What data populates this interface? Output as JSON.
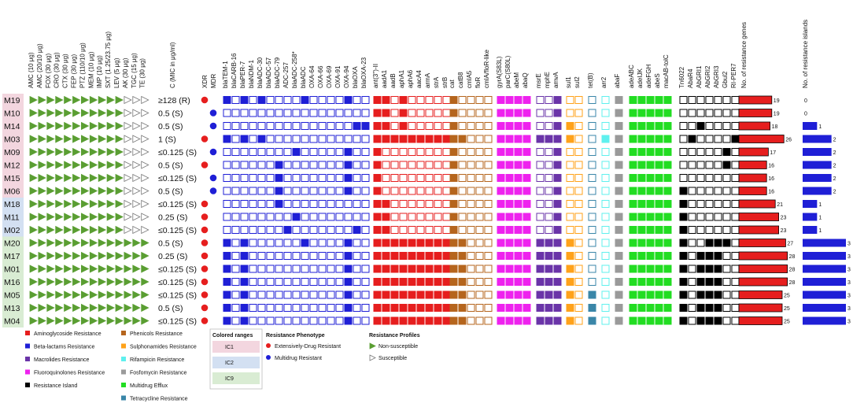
{
  "chart_data": {
    "type": "heatmap",
    "title": "",
    "isolates": [
      "M19",
      "M10",
      "M14",
      "M03",
      "M09",
      "M12",
      "M15",
      "M06",
      "M18",
      "M11",
      "M02",
      "M20",
      "M17",
      "M01",
      "M16",
      "M05",
      "M13",
      "M04"
    ],
    "mic_header": "C (MIC in μg/ml)",
    "mic_values": [
      "≥128 (R)",
      "0.5 (S)",
      "0.5 (S)",
      "1 (S)",
      "≤0.125 (S)",
      "0.5 (S)",
      "≤0.125 (S)",
      "0.5 (S)",
      "≤0.125 (S)",
      "0.25 (S)",
      "≤0.125 (S)",
      "0.5 (S)",
      "0.25 (S)",
      "≤0.125 (S)",
      "≤0.125 (S)",
      "≤0.125 (S)",
      "0.5 (S)",
      "≤0.125 (S)"
    ],
    "antibiotics": [
      "AMC (10 μg)",
      "AMC (20/10 μg)",
      "FOX (30 μg)",
      "CRO (30 μg)",
      "CTX (30 μg)",
      "FEP (30 μg)",
      "PTZ (110/10 μg)",
      "MEM (10 μg)",
      "IMP (10 μg)",
      "SXT (1.25/23.75 μg)",
      "LEV (5 μg)",
      "AK (30 μg)",
      "TGC (15 μg)",
      "TE (30 μg)"
    ],
    "susceptibility": [
      "RRRRRRRRRRRSSS",
      "RRRRRRRRRRRSSS",
      "RRRRRRRRRRRSSS",
      "RRRRRRRRRRRSSS",
      "RRRRRRRRRRRSSS",
      "RRRRRRRRRRRSSS",
      "RRRRRRRRRRRSSS",
      "RRRRRRRRRRRSSS",
      "RRRRRRRRRRRSSS",
      "RRRRRRRRRRRSSS",
      "RRRRRRRRRRRSSS",
      "RRRRRRRRRRRRRR",
      "RRRRRRRRRRRRRR",
      "RRRRRRRRRRRRRR",
      "RRRRRRRRRRRRRR",
      "RRRRRRRRRRRRRR",
      "RRRRRRRRRRRRRR",
      "RRRRRRRRRRRRRR"
    ],
    "ic_groups": [
      "IC1",
      "IC1",
      "IC1",
      "IC1",
      "IC1",
      "IC1",
      "IC1",
      "IC1",
      "IC2",
      "IC2",
      "IC2",
      "IC9",
      "IC9",
      "IC9",
      "IC9",
      "IC9",
      "IC9",
      "IC9"
    ],
    "phenotype_headers": [
      "XDR",
      "MDR"
    ],
    "phenotypes": [
      "XDR",
      "MDR",
      "MDR",
      "XDR",
      "MDR",
      "XDR",
      "MDR",
      "MDR",
      "XDR",
      "XDR",
      "XDR",
      "XDR",
      "XDR",
      "XDR",
      "XDR",
      "XDR",
      "XDR",
      "XDR"
    ],
    "gene_groups": [
      {
        "name": "Beta-lactams",
        "color": "#1f1fd6",
        "genes": [
          "blaTEM-1",
          "blaCARB-16",
          "blaPER-7",
          "blaNDM-1",
          "blaADC-30",
          "blaADC-57",
          "blaADC-79",
          "ADC-257",
          "blaADC-258*",
          "blaADC",
          "OXA-64",
          "OXA-66",
          "OXA-69",
          "OXA-91",
          "OXA-94",
          "blaOXA",
          "blaOXA-23"
        ],
        "rows": [
          "10101000010000100",
          "00000000000000000",
          "00000000000000011",
          "10101000000000000",
          "00000000100000100",
          "00000010000000100",
          "00000010000000100",
          "00000010000000100",
          "00000010000000000",
          "00000000100000000",
          "00000001000000010",
          "10100000010000100",
          "10100000000000100",
          "10100000000000100",
          "10100000000000100",
          "10100000000000100",
          "10100000000000100",
          "10100000000000100"
        ]
      },
      {
        "name": "Aminoglycosides",
        "color": "#e61e1e",
        "genes": [
          "ant(3'')-II",
          "aadA1",
          "aadB",
          "aphA1",
          "aphA6",
          "aacA4",
          "armA",
          "strA",
          "strB"
        ],
        "rows": [
          "110100000",
          "110100000",
          "110100000",
          "111111111",
          "100000000",
          "100000000",
          "100000000",
          "100000000",
          "110000000",
          "110000000",
          "110000000",
          "111111111",
          "111111111",
          "111111111",
          "111111111",
          "111111111",
          "111111111",
          "111111111"
        ]
      },
      {
        "name": "Phenicols",
        "color": "#b5651d",
        "genes": [
          "cat",
          "catB8",
          "cmlA5",
          "floR",
          "cmlA/floR-like"
        ],
        "rows": [
          "10000",
          "10000",
          "10000",
          "11000",
          "10000",
          "10000",
          "10000",
          "10000",
          "10000",
          "10000",
          "10000",
          "11000",
          "11000",
          "11000",
          "11000",
          "11000",
          "11000",
          "11000"
        ]
      },
      {
        "name": "Fluoroquinolones",
        "color": "#ee22ee",
        "genes": [
          "gyrA(S83L)",
          "parC(S80L)",
          "abeM",
          "abaQ"
        ],
        "rows": [
          "1111",
          "1111",
          "1111",
          "1111",
          "1111",
          "1111",
          "1111",
          "1111",
          "1111",
          "1111",
          "1111",
          "1111",
          "1111",
          "1111",
          "1111",
          "1111",
          "1111",
          "1111"
        ]
      },
      {
        "name": "Macrolides",
        "color": "#6a34a8",
        "genes": [
          "msrE",
          "mphE",
          "amvA"
        ],
        "rows": [
          "001",
          "001",
          "001",
          "111",
          "001",
          "001",
          "001",
          "001",
          "001",
          "001",
          "001",
          "111",
          "111",
          "111",
          "111",
          "111",
          "111",
          "111"
        ]
      },
      {
        "name": "Sulphonamides",
        "color": "#ffa21a",
        "genes": [
          "sul1",
          "sul2"
        ],
        "rows": [
          "00",
          "00",
          "10",
          "10",
          "00",
          "00",
          "00",
          "00",
          "00",
          "00",
          "00",
          "10",
          "10",
          "10",
          "10",
          "10",
          "10",
          "10"
        ]
      },
      {
        "name": "Tetracycline",
        "color": "#3a86a8",
        "genes": [
          "tet(B)"
        ],
        "rows": [
          "0",
          "0",
          "0",
          "0",
          "0",
          "0",
          "0",
          "0",
          "0",
          "0",
          "0",
          "0",
          "0",
          "0",
          "0",
          "1",
          "1",
          "1"
        ]
      },
      {
        "name": "Rifampicin",
        "color": "#5ff0ee",
        "genes": [
          "arr2"
        ],
        "rows": [
          "0",
          "0",
          "0",
          "1",
          "0",
          "0",
          "0",
          "0",
          "0",
          "0",
          "0",
          "0",
          "0",
          "0",
          "0",
          "0",
          "0",
          "0"
        ]
      },
      {
        "name": "Fosfomycin",
        "color": "#9a9a9a",
        "genes": [
          "abaF"
        ],
        "rows": [
          "1",
          "1",
          "1",
          "1",
          "1",
          "1",
          "1",
          "1",
          "1",
          "1",
          "1",
          "1",
          "1",
          "1",
          "1",
          "1",
          "1",
          "1"
        ]
      },
      {
        "name": "Multidrug Efflux",
        "color": "#22dd22",
        "genes": [
          "adeABC",
          "adeIJK",
          "adeFGH",
          "abeS",
          "macAB-tolC"
        ],
        "rows": [
          "11111",
          "11111",
          "11111",
          "11111",
          "11111",
          "11111",
          "11111",
          "11111",
          "11111",
          "11111",
          "11111",
          "11111",
          "11111",
          "11111",
          "11111",
          "11111",
          "11111",
          "11111"
        ]
      },
      {
        "name": "Resistance Island",
        "color": "#000000",
        "genes": [
          "Tn6022",
          "AbaR4",
          "AbGRI1",
          "AbGRI2",
          "AbGRI3",
          "Gbul2",
          "RI-PER7"
        ],
        "rows": [
          "0000000",
          "0000000",
          "0010000",
          "0100001",
          "0000010",
          "0000010",
          "0000000",
          "1000000",
          "1000000",
          "1000000",
          "1000000",
          "1001110",
          "1011100",
          "1011100",
          "1011100",
          "1011100",
          "1011100",
          "1011100"
        ]
      }
    ],
    "genes_header": "No. of resistance genes",
    "resistance_genes_counts": [
      19,
      19,
      18,
      26,
      17,
      16,
      16,
      16,
      21,
      23,
      23,
      27,
      28,
      28,
      28,
      25,
      25,
      25
    ],
    "islands_header": "No. of resistance islands",
    "resistance_islands_counts": [
      0,
      0,
      1,
      2,
      2,
      2,
      2,
      2,
      1,
      1,
      1,
      3,
      3,
      3,
      3,
      3,
      3,
      3
    ],
    "genes_max": 30,
    "islands_max": 3,
    "legend_categories": [
      {
        "label": "Aminoglycoside Resistance",
        "color": "#e61e1e"
      },
      {
        "label": "Beta-lactams Resistance",
        "color": "#1f1fd6"
      },
      {
        "label": "Macrolides Resistance",
        "color": "#6a34a8"
      },
      {
        "label": "Fluoroquinolones Resistance",
        "color": "#ee22ee"
      },
      {
        "label": "Resistance Island",
        "color": "#000000"
      },
      {
        "label": "Phenicols Resistance",
        "color": "#b5651d"
      },
      {
        "label": "Sulphonamides Resistance",
        "color": "#ffa21a"
      },
      {
        "label": "Rifampicin Resistance",
        "color": "#5ff0ee"
      },
      {
        "label": "Fosfomycin Resistance",
        "color": "#9a9a9a"
      },
      {
        "label": "Multidrug Efflux",
        "color": "#22dd22"
      },
      {
        "label": "Tetracycline Resistance",
        "color": "#3a86a8"
      }
    ],
    "legend_ranges_title": "Colored ranges",
    "legend_ranges": [
      {
        "label": "IC1",
        "color": "#f3d6df"
      },
      {
        "label": "IC2",
        "color": "#d3e0f2"
      },
      {
        "label": "IC9",
        "color": "#d9ecd3"
      }
    ],
    "legend_phenotype_title": "Resistance Phenotype",
    "legend_phenotype": [
      {
        "label": "Extensively-Drug Resistant",
        "color": "#e61e1e"
      },
      {
        "label": "Multidrug Resistant",
        "color": "#1f1fd6"
      }
    ],
    "legend_profiles_title": "Resistance Profiles",
    "legend_profiles": [
      {
        "label": "Non-susceptible",
        "filled": true
      },
      {
        "label": "Susceptible",
        "filled": false
      }
    ],
    "colors": {
      "triangle": "#5a9e32",
      "xdr": "#e61e1e",
      "mdr": "#1f1fd6",
      "genes_bar": "#e61e1e",
      "islands_bar": "#1f1fd6",
      "ic1": "#f3d6df",
      "ic2": "#d3e0f2",
      "ic9": "#d9ecd3"
    }
  }
}
